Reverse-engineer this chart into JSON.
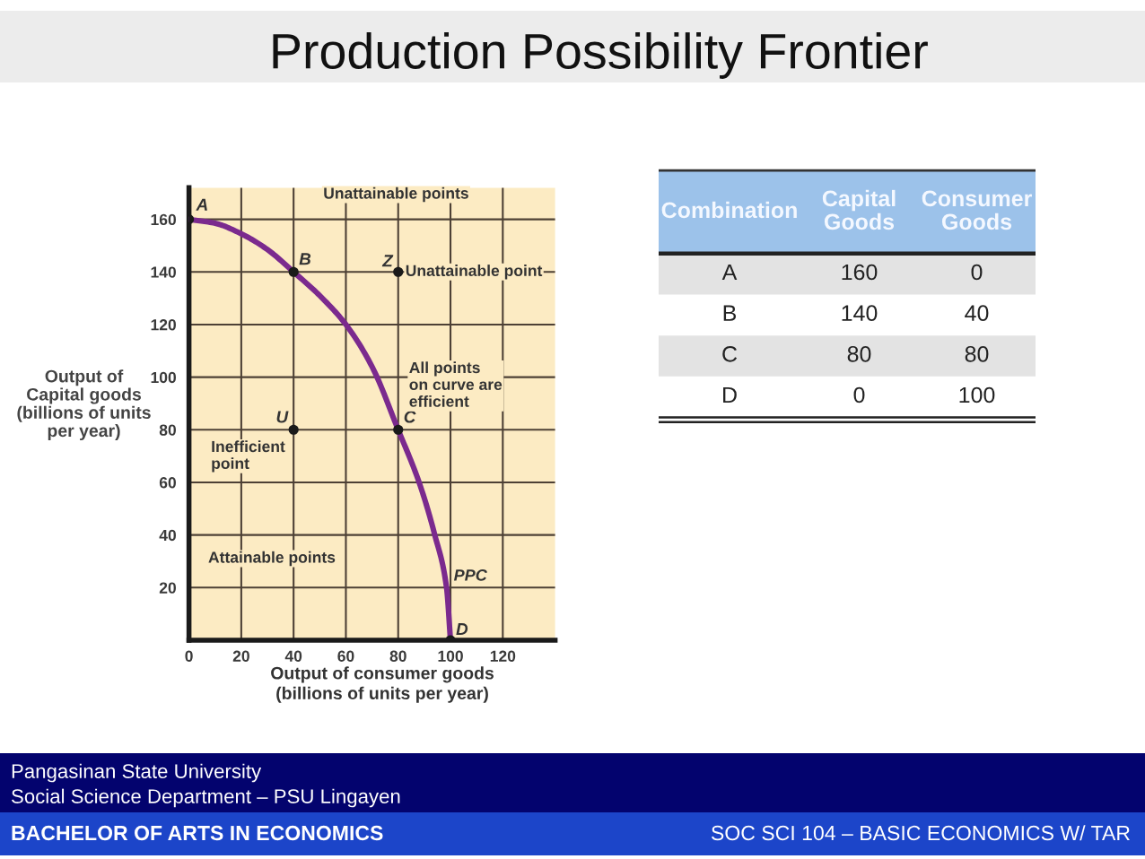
{
  "chart_data": [
    {
      "type": "line",
      "title": "Production Possibility Frontier",
      "xlabel": "Output of consumer goods\n(billions of units per year)",
      "ylabel": "Output of\nCapital goods\n(billions of units\nper year)",
      "series": [
        {
          "name": "PPC",
          "type": "line",
          "color": "#7b2a8e",
          "marker": "none",
          "x": [
            0,
            10,
            20,
            30,
            40,
            50,
            60,
            70,
            80,
            88,
            94,
            98.5,
            100
          ],
          "values": [
            160,
            158.5,
            154.5,
            148.5,
            140,
            131,
            120,
            104,
            80,
            60,
            40,
            20,
            0
          ]
        },
        {
          "type": "scatter",
          "color": "#1a1a1a",
          "marker": "circle",
          "x": [
            0,
            40,
            80,
            100,
            40,
            80
          ],
          "values": [
            160,
            140,
            80,
            0,
            80,
            140
          ]
        }
      ],
      "xlim": [
        0,
        140
      ],
      "ylim": [
        0,
        172
      ],
      "xticks": [
        0,
        20,
        40,
        60,
        80,
        100,
        120
      ],
      "yticks": [
        20,
        40,
        60,
        80,
        100,
        120,
        140,
        160
      ],
      "grid": true,
      "annotations": [
        {
          "text": "A",
          "x": 0,
          "y": 160
        },
        {
          "text": "B",
          "x": 40,
          "y": 140
        },
        {
          "text": "C",
          "x": 80,
          "y": 80
        },
        {
          "text": "D",
          "x": 100,
          "y": 0
        },
        {
          "text": "U",
          "x": 40,
          "y": 80
        },
        {
          "text": "Z",
          "x": 80,
          "y": 140
        },
        {
          "text": "Unattainable point",
          "x": 80,
          "y": 140
        },
        {
          "text": "Inefficient\npoint",
          "x": 40,
          "y": 80
        },
        {
          "text": "All points\non curve are\nefficient",
          "x": 80,
          "y": 80
        },
        "Unattainable points",
        "Attainable points",
        "Pangasinan State University",
        "Social Science Department – PSU Lingayen",
        "BACHELOR OF ARTS IN ECONOMICS",
        "SOC SCI 104 – BASIC ECONOMICS W/ TAR"
      ]
    },
    {
      "type": "other",
      "xlabel": "Combination",
      "categories": [
        "A",
        "B",
        "C",
        "D"
      ],
      "data_labels": true,
      "series": [
        {
          "name": "Capital Goods",
          "values": [
            160,
            140,
            80,
            0
          ]
        },
        {
          "name": "Consumer Goods",
          "values": [
            0,
            40,
            80,
            100
          ]
        }
      ]
    }
  ]
}
